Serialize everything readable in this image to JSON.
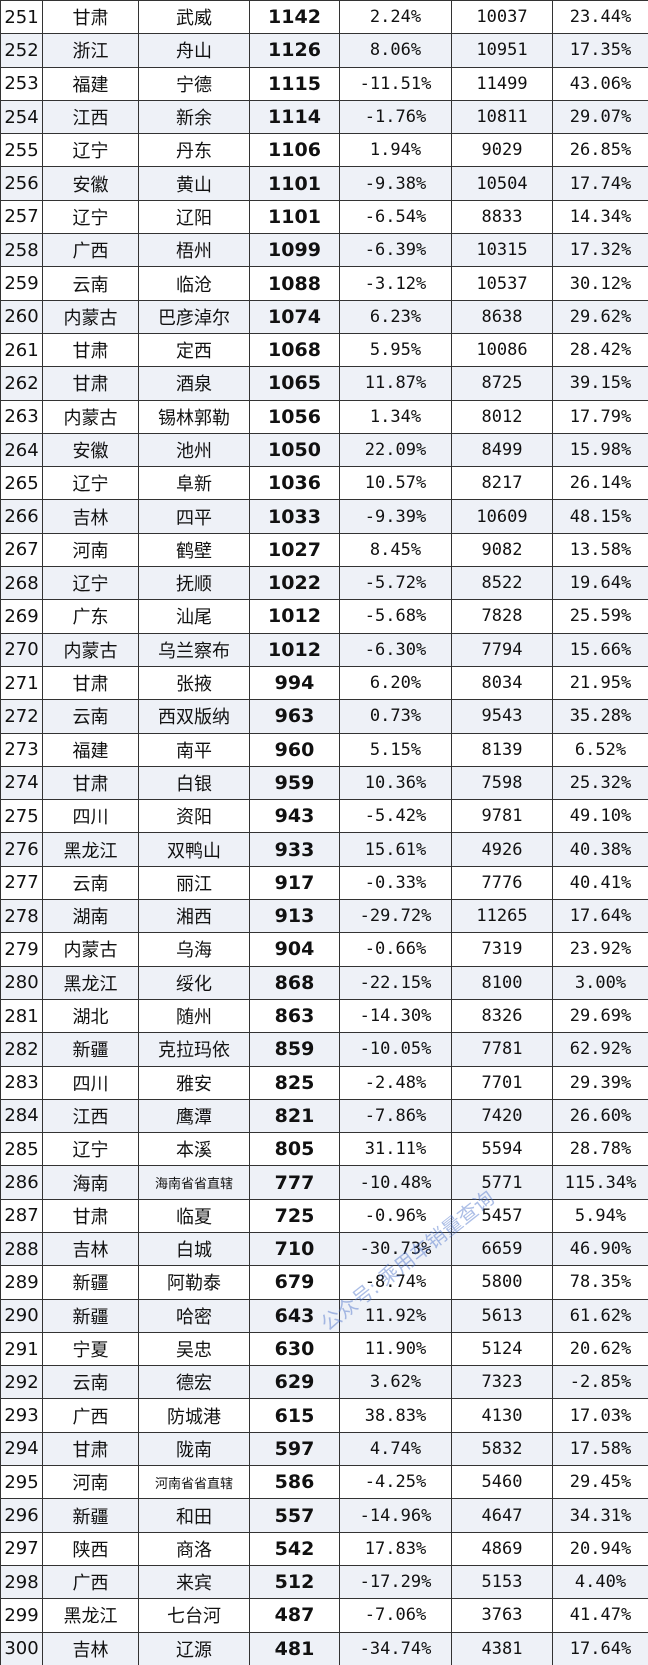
{
  "table": {
    "rows": [
      [
        "251",
        "甘肃",
        "武威",
        "1142",
        "2.24%",
        "10037",
        "23.44%"
      ],
      [
        "252",
        "浙江",
        "舟山",
        "1126",
        "8.06%",
        "10951",
        "17.35%"
      ],
      [
        "253",
        "福建",
        "宁德",
        "1115",
        "-11.51%",
        "11499",
        "43.06%"
      ],
      [
        "254",
        "江西",
        "新余",
        "1114",
        "-1.76%",
        "10811",
        "29.07%"
      ],
      [
        "255",
        "辽宁",
        "丹东",
        "1106",
        "1.94%",
        "9029",
        "26.85%"
      ],
      [
        "256",
        "安徽",
        "黄山",
        "1101",
        "-9.38%",
        "10504",
        "17.74%"
      ],
      [
        "257",
        "辽宁",
        "辽阳",
        "1101",
        "-6.54%",
        "8833",
        "14.34%"
      ],
      [
        "258",
        "广西",
        "梧州",
        "1099",
        "-6.39%",
        "10315",
        "17.32%"
      ],
      [
        "259",
        "云南",
        "临沧",
        "1088",
        "-3.12%",
        "10537",
        "30.12%"
      ],
      [
        "260",
        "内蒙古",
        "巴彦淖尔",
        "1074",
        "6.23%",
        "8638",
        "29.62%"
      ],
      [
        "261",
        "甘肃",
        "定西",
        "1068",
        "5.95%",
        "10086",
        "28.42%"
      ],
      [
        "262",
        "甘肃",
        "酒泉",
        "1065",
        "11.87%",
        "8725",
        "39.15%"
      ],
      [
        "263",
        "内蒙古",
        "锡林郭勒",
        "1056",
        "1.34%",
        "8012",
        "17.79%"
      ],
      [
        "264",
        "安徽",
        "池州",
        "1050",
        "22.09%",
        "8499",
        "15.98%"
      ],
      [
        "265",
        "辽宁",
        "阜新",
        "1036",
        "10.57%",
        "8217",
        "26.14%"
      ],
      [
        "266",
        "吉林",
        "四平",
        "1033",
        "-9.39%",
        "10609",
        "48.15%"
      ],
      [
        "267",
        "河南",
        "鹤壁",
        "1027",
        "8.45%",
        "9082",
        "13.58%"
      ],
      [
        "268",
        "辽宁",
        "抚顺",
        "1022",
        "-5.72%",
        "8522",
        "19.64%"
      ],
      [
        "269",
        "广东",
        "汕尾",
        "1012",
        "-5.68%",
        "7828",
        "25.59%"
      ],
      [
        "270",
        "内蒙古",
        "乌兰察布",
        "1012",
        "-6.30%",
        "7794",
        "15.66%"
      ],
      [
        "271",
        "甘肃",
        "张掖",
        "994",
        "6.20%",
        "8034",
        "21.95%"
      ],
      [
        "272",
        "云南",
        "西双版纳",
        "963",
        "0.73%",
        "9543",
        "35.28%"
      ],
      [
        "273",
        "福建",
        "南平",
        "960",
        "5.15%",
        "8139",
        "6.52%"
      ],
      [
        "274",
        "甘肃",
        "白银",
        "959",
        "10.36%",
        "7598",
        "25.32%"
      ],
      [
        "275",
        "四川",
        "资阳",
        "943",
        "-5.42%",
        "9781",
        "49.10%"
      ],
      [
        "276",
        "黑龙江",
        "双鸭山",
        "933",
        "15.61%",
        "4926",
        "40.38%"
      ],
      [
        "277",
        "云南",
        "丽江",
        "917",
        "-0.33%",
        "7776",
        "40.41%"
      ],
      [
        "278",
        "湖南",
        "湘西",
        "913",
        "-29.72%",
        "11265",
        "17.64%"
      ],
      [
        "279",
        "内蒙古",
        "乌海",
        "904",
        "-0.66%",
        "7319",
        "23.92%"
      ],
      [
        "280",
        "黑龙江",
        "绥化",
        "868",
        "-22.15%",
        "8100",
        "3.00%"
      ],
      [
        "281",
        "湖北",
        "随州",
        "863",
        "-14.30%",
        "8326",
        "29.69%"
      ],
      [
        "282",
        "新疆",
        "克拉玛依",
        "859",
        "-10.05%",
        "7781",
        "62.92%"
      ],
      [
        "283",
        "四川",
        "雅安",
        "825",
        "-2.48%",
        "7701",
        "29.39%"
      ],
      [
        "284",
        "江西",
        "鹰潭",
        "821",
        "-7.86%",
        "7420",
        "26.60%"
      ],
      [
        "285",
        "辽宁",
        "本溪",
        "805",
        "31.11%",
        "5594",
        "28.78%"
      ],
      [
        "286",
        "海南",
        "海南省省直辖",
        "777",
        "-10.48%",
        "5771",
        "115.34%"
      ],
      [
        "287",
        "甘肃",
        "临夏",
        "725",
        "-0.96%",
        "5457",
        "5.94%"
      ],
      [
        "288",
        "吉林",
        "白城",
        "710",
        "-30.73%",
        "6659",
        "46.90%"
      ],
      [
        "289",
        "新疆",
        "阿勒泰",
        "679",
        "-8.74%",
        "5800",
        "78.35%"
      ],
      [
        "290",
        "新疆",
        "哈密",
        "643",
        "11.92%",
        "5613",
        "61.62%"
      ],
      [
        "291",
        "宁夏",
        "吴忠",
        "630",
        "11.90%",
        "5124",
        "20.62%"
      ],
      [
        "292",
        "云南",
        "德宏",
        "629",
        "3.62%",
        "7323",
        "-2.85%"
      ],
      [
        "293",
        "广西",
        "防城港",
        "615",
        "38.83%",
        "4130",
        "17.03%"
      ],
      [
        "294",
        "甘肃",
        "陇南",
        "597",
        "4.74%",
        "5832",
        "17.58%"
      ],
      [
        "295",
        "河南",
        "河南省省直辖",
        "586",
        "-4.25%",
        "5460",
        "29.45%"
      ],
      [
        "296",
        "新疆",
        "和田",
        "557",
        "-14.96%",
        "4647",
        "34.31%"
      ],
      [
        "297",
        "陕西",
        "商洛",
        "542",
        "17.83%",
        "4869",
        "20.94%"
      ],
      [
        "298",
        "广西",
        "来宾",
        "512",
        "-17.29%",
        "5153",
        "4.40%"
      ],
      [
        "299",
        "黑龙江",
        "七台河",
        "487",
        "-7.06%",
        "3763",
        "41.47%"
      ],
      [
        "300",
        "吉林",
        "辽源",
        "481",
        "-34.74%",
        "4381",
        "17.64%"
      ]
    ]
  },
  "watermark": "公众号: 乘用车销量查询"
}
